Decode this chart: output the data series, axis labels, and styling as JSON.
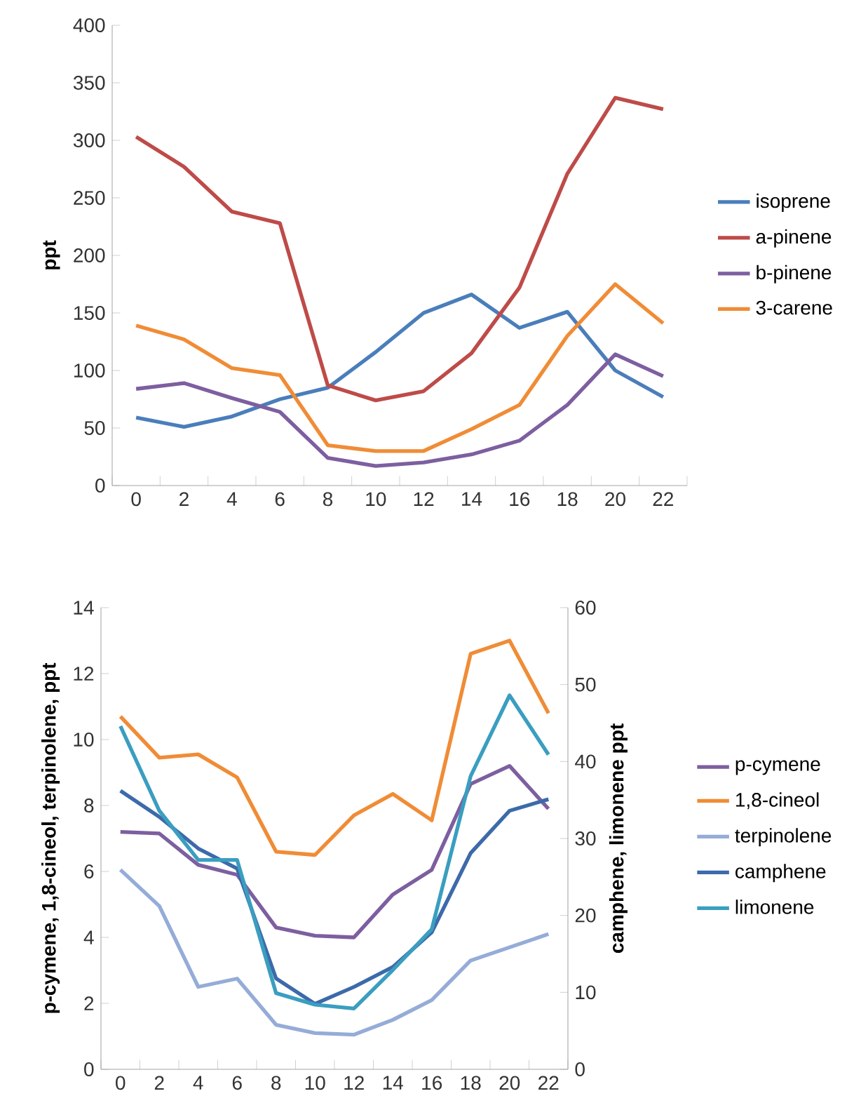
{
  "chart_data": [
    {
      "type": "line",
      "ylabel": "ppt",
      "categories": [
        "0",
        "2",
        "4",
        "6",
        "8",
        "10",
        "12",
        "14",
        "16",
        "18",
        "20",
        "22"
      ],
      "series": [
        {
          "name": "isoprene",
          "color": "#4a7ebb",
          "values": [
            59,
            51,
            60,
            75,
            85,
            116,
            150,
            166,
            137,
            151,
            100,
            77
          ]
        },
        {
          "name": "a-pinene",
          "color": "#be4b48",
          "values": [
            303,
            277,
            238,
            228,
            87,
            74,
            82,
            115,
            172,
            271,
            337,
            327
          ]
        },
        {
          "name": "b-pinene",
          "color": "#7d5fa0",
          "values": [
            84,
            89,
            76,
            64,
            24,
            17,
            20,
            27,
            39,
            70,
            114,
            95
          ]
        },
        {
          "name": "3-carene",
          "color": "#f08c36",
          "values": [
            139,
            127,
            102,
            96,
            35,
            30,
            30,
            49,
            70,
            130,
            175,
            141
          ]
        }
      ],
      "ylim": [
        0,
        400
      ],
      "yticks": [
        0,
        50,
        100,
        150,
        200,
        250,
        300,
        350,
        400
      ],
      "legend": "right",
      "marker": "none",
      "line_style": "solid"
    },
    {
      "type": "line",
      "ylabel": "p-cymene, 1,8-cineol, terpinolene, ppt",
      "y2label": "camphene, limonene ppt",
      "categories": [
        "0",
        "2",
        "4",
        "6",
        "8",
        "10",
        "12",
        "14",
        "16",
        "18",
        "20",
        "22"
      ],
      "series": [
        {
          "name": "p-cymene",
          "color": "#7d5fa0",
          "values": [
            7.2,
            7.15,
            6.2,
            5.9,
            4.3,
            4.05,
            4.0,
            5.3,
            6.05,
            8.65,
            9.2,
            7.9
          ]
        },
        {
          "name": "1,8-cineol",
          "color": "#f08c36",
          "values": [
            10.7,
            9.45,
            9.55,
            8.85,
            6.6,
            6.5,
            7.7,
            8.35,
            7.55,
            12.6,
            13.0,
            10.8
          ]
        },
        {
          "name": "terpinolene",
          "color": "#95acd8",
          "values": [
            6.05,
            4.95,
            2.5,
            2.75,
            1.35,
            1.1,
            1.05,
            1.5,
            2.1,
            3.3,
            3.7,
            4.1
          ]
        },
        {
          "name": "camphene",
          "color": "#3c6aaa",
          "axis": "y2",
          "values": [
            36.2,
            32.8,
            28.7,
            26.1,
            11.8,
            8.5,
            10.7,
            13.3,
            17.8,
            28.1,
            33.6,
            35.1
          ]
        },
        {
          "name": "limonene",
          "color": "#3a9ec0",
          "axis": "y2",
          "values": [
            44.6,
            33.6,
            27.2,
            27.2,
            9.9,
            8.4,
            7.9,
            12.9,
            18.2,
            38.1,
            48.6,
            40.9
          ]
        }
      ],
      "ylim": [
        0,
        14
      ],
      "yticks": [
        0,
        2,
        4,
        6,
        8,
        10,
        12,
        14
      ],
      "y2lim": [
        0,
        60
      ],
      "y2ticks": [
        0,
        10,
        20,
        30,
        40,
        50,
        60
      ],
      "legend": "right",
      "marker": "none",
      "line_style": "solid"
    }
  ]
}
